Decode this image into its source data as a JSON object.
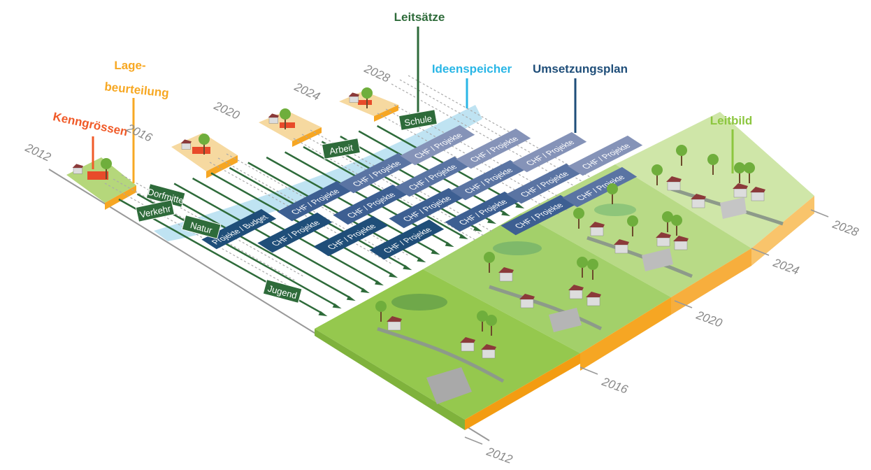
{
  "headers": {
    "leitsaetze": "Leitsätze",
    "ideenspeicher": "Ideenspeicher",
    "umsetzungsplan": "Umsetzungsplan",
    "leitbild": "Leitbild",
    "lagebeurteilung": [
      "Lage-",
      "beurteilung"
    ],
    "kenngroessen": "Kenngrössen"
  },
  "timeline_years": [
    "2012",
    "2016",
    "2020",
    "2024",
    "2028"
  ],
  "tile_years": [
    "2012",
    "2016",
    "2020",
    "2024",
    "2028"
  ],
  "themes": [
    "Schule",
    "Arbeit",
    "Dorfmitte",
    "Verkehr",
    "Natur",
    "Jugend"
  ],
  "projects": [
    "Projekte / Budget",
    "CHF / Projekte",
    "CHF / Projekte",
    "CHF / Projekte",
    "CHF / Projekte",
    "CHF / Projekte",
    "CHF / Projekte",
    "CHF / Projekte",
    "CHF / Projekte",
    "CHF / Projekte",
    "CHF / Projekte",
    "CHF / Projekte",
    "CHF / Projekte",
    "CHF / Projekte",
    "CHF / Projekte",
    "CHF / Projekte",
    "CHF / Projekte",
    "CHF / Projekte"
  ]
}
